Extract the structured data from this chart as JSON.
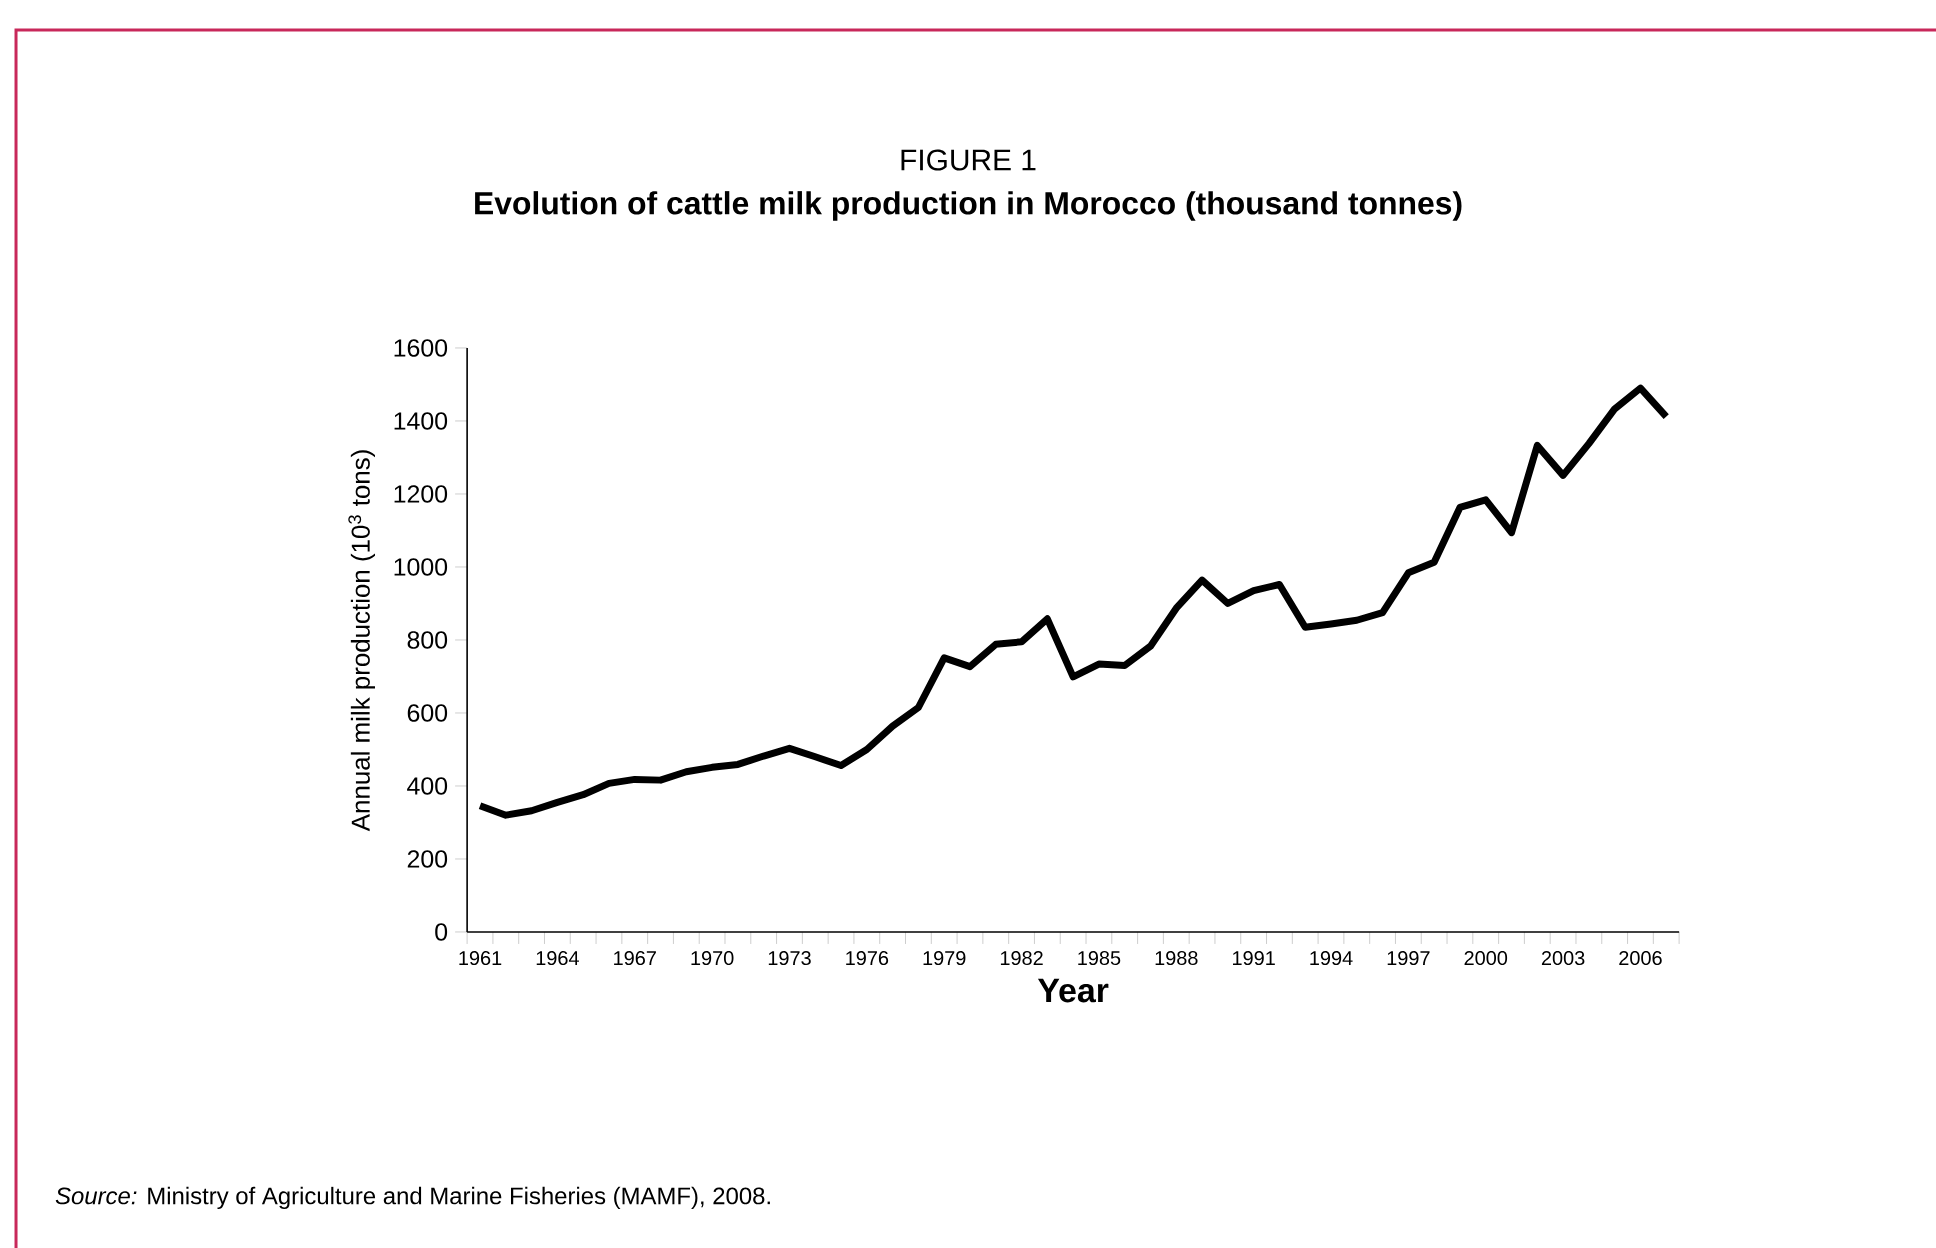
{
  "chart_data": {
    "type": "line",
    "title": "FIGURE 1",
    "subtitle": "Evolution of cattle milk production in Morocco (thousand tonnes)",
    "xlabel": "Year",
    "ylabel": "Annual milk production (10$^{3}$ tons)",
    "annotations": [
      "*Source:* Ministry of Agriculture and Marine Fisheries (MAMF), 2008."
    ],
    "categories": [
      "1961",
      null,
      null,
      "1964",
      null,
      null,
      "1967",
      null,
      null,
      "1970",
      null,
      null,
      "1973",
      null,
      null,
      "1976",
      null,
      null,
      "1979",
      null,
      null,
      "1982",
      null,
      null,
      "1985",
      null,
      null,
      "1988",
      null,
      null,
      "1991",
      null,
      null,
      "1994",
      null,
      null,
      "1997",
      null,
      null,
      "2000",
      null,
      null,
      "2003",
      null,
      null,
      "2006",
      null
    ],
    "series": [
      {
        "color": "#000000",
        "values": [
          346,
          320,
          332,
          355,
          376,
          407,
          418,
          416,
          439,
          451,
          459,
          482,
          503,
          480,
          456,
          500,
          564,
          615,
          751,
          727,
          788,
          795,
          858,
          699,
          734,
          730,
          783,
          887,
          964,
          900,
          935,
          952,
          835,
          844,
          854,
          875,
          984,
          1013,
          1163,
          1184,
          1094,
          1333,
          1251,
          1338,
          1433,
          1490,
          1412
        ]
      }
    ],
    "ylim": [
      0,
      1600
    ],
    "yticks": [
      0,
      200,
      400,
      600,
      800,
      1000,
      1200,
      1400,
      1600
    ],
    "grid": false,
    "legend": false,
    "marker": "none",
    "line_style": "solid"
  }
}
